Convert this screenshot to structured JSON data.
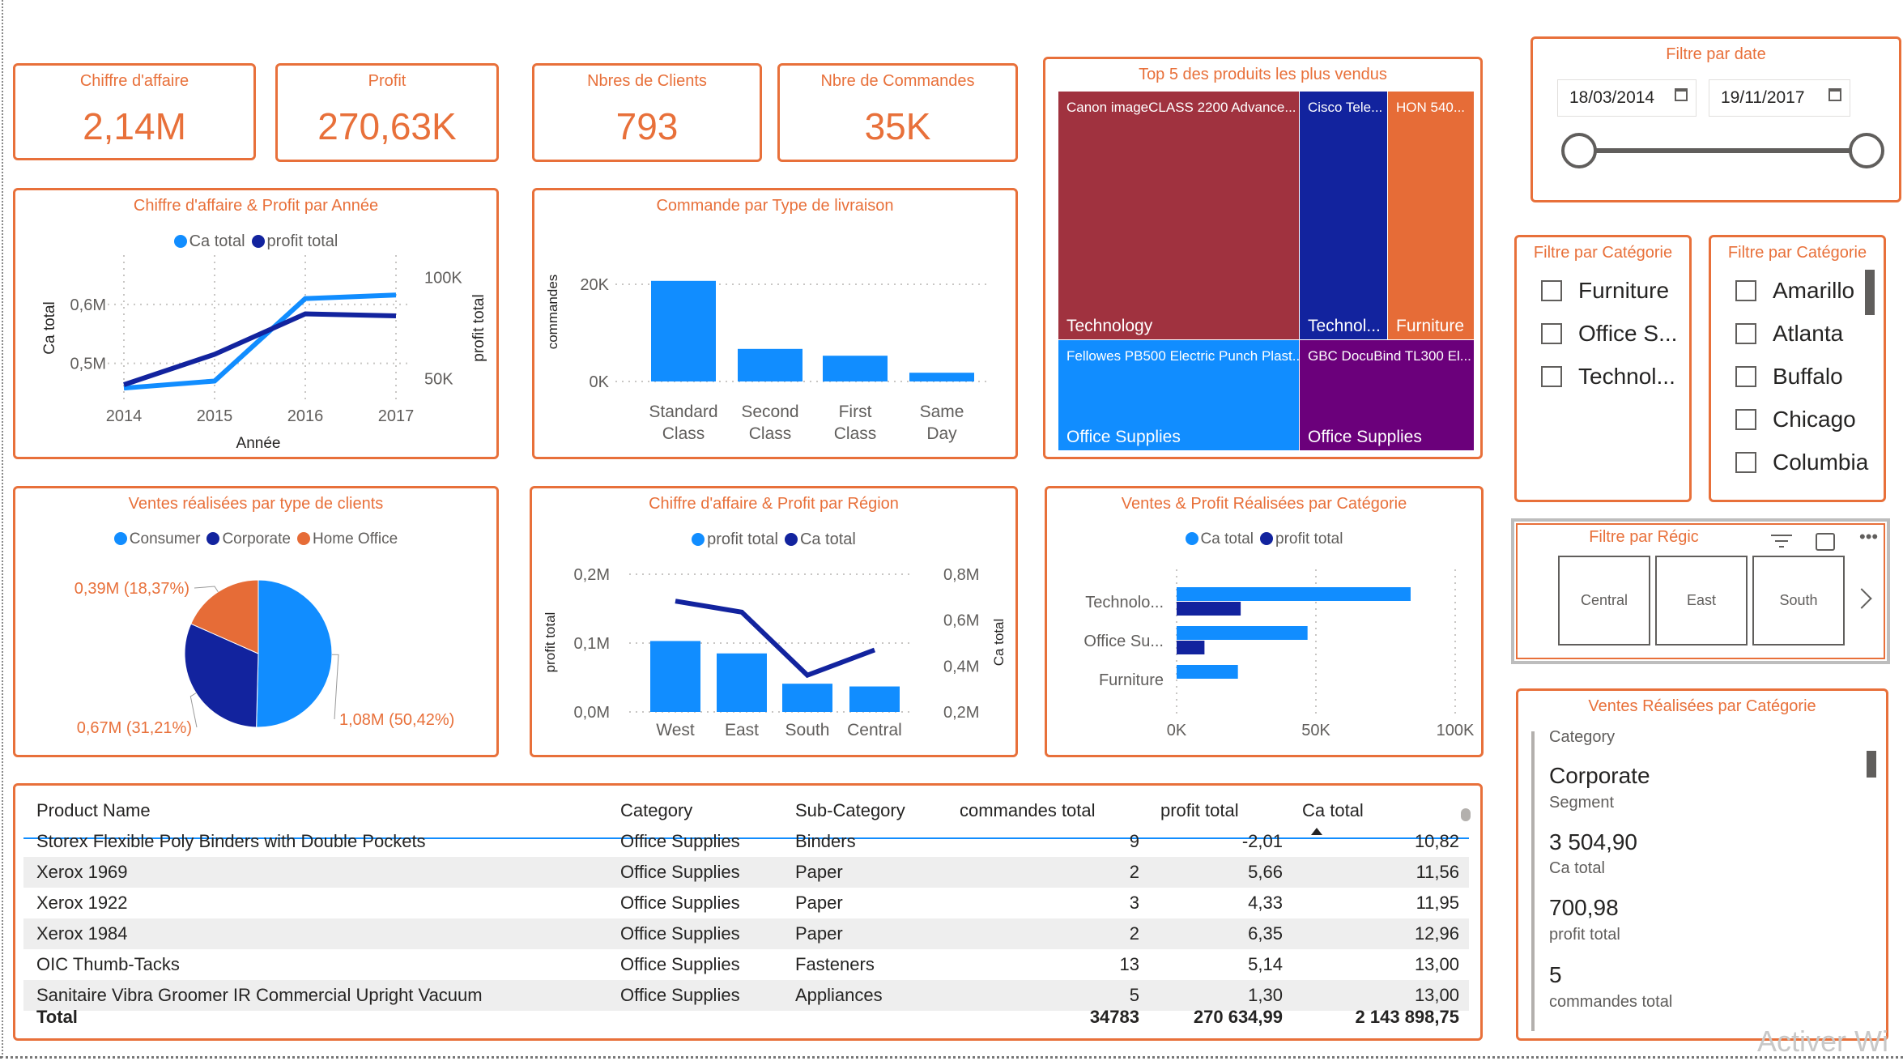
{
  "colors": {
    "accent": "#E8703A",
    "blue": "#118DFF",
    "dark_blue": "#12239E",
    "maroon": "#A0323F",
    "purple": "#6B007B"
  },
  "kpis": [
    {
      "title": "Chiffre d'affaire",
      "value": "2,14M"
    },
    {
      "title": "Profit",
      "value": "270,63K"
    },
    {
      "title": "Nbres de Clients",
      "value": "793"
    },
    {
      "title": "Nbre de Commandes",
      "value": "35K"
    }
  ],
  "treemap": {
    "title": "Top 5 des produits les plus vendus",
    "tiles": [
      {
        "product": "Canon imageCLASS 2200 Advance...",
        "category": "Technology",
        "color": "#A0323F"
      },
      {
        "product": "Cisco Tele...",
        "category": "Technol...",
        "color": "#12239E"
      },
      {
        "product": "HON 540...",
        "category": "Furniture",
        "color": "#E66C37"
      },
      {
        "product": "Fellowes PB500 Electric Punch Plast...",
        "category": "Office Supplies",
        "color": "#118DFF"
      },
      {
        "product": "GBC DocuBind TL300 El...",
        "category": "Office Supplies",
        "color": "#6B007B"
      }
    ]
  },
  "date_filter": {
    "title": "Filtre par date",
    "start": "18/03/2014",
    "end": "19/11/2017",
    "range_fraction": [
      0,
      1
    ]
  },
  "category_filter": {
    "title": "Filtre par Catégorie",
    "items": [
      "Furniture",
      "Office S...",
      "Technol..."
    ]
  },
  "city_filter": {
    "title": "Filtre par Catégorie",
    "items": [
      "Amarillo",
      "Atlanta",
      "Buffalo",
      "Chicago",
      "Columbia"
    ]
  },
  "region_filter": {
    "title": "Filtre par Régic",
    "tiles": [
      "Central",
      "East",
      "South"
    ]
  },
  "card": {
    "title": "Ventes Réalisées par Catégorie",
    "fields": [
      {
        "label": "Category",
        "value": ""
      },
      {
        "value": "Corporate",
        "label": "Segment"
      },
      {
        "value": "3 504,90",
        "label": "Ca total"
      },
      {
        "value": "700,98",
        "label": "profit total"
      },
      {
        "value": "5",
        "label": "commandes total"
      }
    ]
  },
  "chart_data": [
    {
      "type": "line",
      "title": "Chiffre d'affaire & Profit par Année",
      "legend": [
        "Ca total",
        "profit total"
      ],
      "x": [
        "2014",
        "2015",
        "2016",
        "2017"
      ],
      "xlabel": "Année",
      "ylabel": "Ca total",
      "y2label": "profit total",
      "ylim": [
        0.45,
        0.67
      ],
      "y2lim": [
        43,
        107
      ],
      "yticks": [
        {
          "v": 0.5,
          "label": "0,5M"
        },
        {
          "v": 0.6,
          "label": "0,6M"
        }
      ],
      "y2ticks": [
        {
          "v": 50,
          "label": "50K"
        },
        {
          "v": 100,
          "label": "100K"
        }
      ],
      "series": [
        {
          "name": "Ca total",
          "axis": "left",
          "color": "#118DFF",
          "values": [
            0.458,
            0.47,
            0.61,
            0.616
          ]
        },
        {
          "name": "profit total",
          "axis": "right",
          "color": "#12239E",
          "values": [
            47,
            62,
            82,
            81
          ]
        }
      ]
    },
    {
      "type": "bar",
      "title": "Commande par Type de livraison",
      "ylabel": "commandes",
      "categories": [
        [
          "Standard",
          "Class"
        ],
        [
          "Second",
          "Class"
        ],
        [
          "First",
          "Class"
        ],
        [
          "Same",
          "Day"
        ]
      ],
      "values": [
        20700,
        6700,
        5300,
        1800
      ],
      "ylim": [
        0,
        24000
      ],
      "yticks": [
        {
          "v": 0,
          "label": "0K"
        },
        {
          "v": 20000,
          "label": "20K"
        }
      ]
    },
    {
      "type": "pie",
      "title": "Ventes réalisées par type de clients",
      "legend": [
        "Consumer",
        "Corporate",
        "Home Office"
      ],
      "slices": [
        {
          "name": "Consumer",
          "value": 50.42,
          "label": "1,08M (50,42%)",
          "color": "#118DFF"
        },
        {
          "name": "Corporate",
          "value": 31.21,
          "label": "0,67M (31,21%)",
          "color": "#12239E"
        },
        {
          "name": "Home Office",
          "value": 18.37,
          "label": "0,39M (18,37%)",
          "color": "#E66C37"
        }
      ]
    },
    {
      "type": "bar",
      "title": "Chiffre d'affaire & Profit par Région",
      "legend": [
        "profit total",
        "Ca total"
      ],
      "categories": [
        "West",
        "East",
        "South",
        "Central"
      ],
      "ylabel": "profit total",
      "y2label": "Ca total",
      "ylim": [
        0,
        0.2
      ],
      "y2lim": [
        0.2,
        0.8
      ],
      "yticks": [
        {
          "v": 0,
          "label": "0,0M"
        },
        {
          "v": 0.1,
          "label": "0,1M"
        },
        {
          "v": 0.2,
          "label": "0,2M"
        }
      ],
      "y2ticks": [
        {
          "v": 0.2,
          "label": "0,2M"
        },
        {
          "v": 0.4,
          "label": "0,4M"
        },
        {
          "v": 0.6,
          "label": "0,6M"
        },
        {
          "v": 0.8,
          "label": "0,8M"
        }
      ],
      "series": [
        {
          "name": "profit total",
          "kind": "bar",
          "color": "#118DFF",
          "values": [
            0.103,
            0.085,
            0.041,
            0.037
          ]
        },
        {
          "name": "Ca total",
          "kind": "line",
          "color": "#12239E",
          "values": [
            0.683,
            0.635,
            0.36,
            0.47
          ]
        }
      ]
    },
    {
      "type": "bar",
      "title": "Ventes & Profit Réalisées par Catégorie",
      "orientation": "horizontal",
      "legend": [
        "Ca total",
        "profit total"
      ],
      "categories": [
        "Technolo...",
        "Office Su...",
        "Furniture"
      ],
      "xlim": [
        0,
        100000
      ],
      "xticks": [
        {
          "v": 0,
          "label": "0K"
        },
        {
          "v": 50000,
          "label": "50K"
        },
        {
          "v": 100000,
          "label": "100K"
        }
      ],
      "series": [
        {
          "name": "Ca total",
          "color": "#118DFF",
          "values": [
            84000,
            47000,
            22000
          ]
        },
        {
          "name": "profit total",
          "color": "#12239E",
          "values": [
            23000,
            10000,
            0
          ]
        }
      ]
    }
  ],
  "table": {
    "columns": [
      "Product Name",
      "Category",
      "Sub-Category",
      "commandes total",
      "profit total",
      "Ca total"
    ],
    "sort_column": "Ca total",
    "rows": [
      [
        "Storex Flexible Poly Binders with Double Pockets",
        "Office Supplies",
        "Binders",
        "9",
        "-2,01",
        "10,82"
      ],
      [
        "Xerox 1969",
        "Office Supplies",
        "Paper",
        "2",
        "5,66",
        "11,56"
      ],
      [
        "Xerox 1922",
        "Office Supplies",
        "Paper",
        "3",
        "4,33",
        "11,95"
      ],
      [
        "Xerox 1984",
        "Office Supplies",
        "Paper",
        "2",
        "6,35",
        "12,96"
      ],
      [
        "OIC Thumb-Tacks",
        "Office Supplies",
        "Fasteners",
        "13",
        "5,14",
        "13,00"
      ],
      [
        "Sanitaire Vibra Groomer IR Commercial Upright Vacuum",
        "Office Supplies",
        "Appliances",
        "5",
        "1,30",
        "13,00"
      ]
    ],
    "total": {
      "label": "Total",
      "commandes": "34783",
      "profit": "270 634,99",
      "ca": "2 143 898,75"
    }
  },
  "watermark": "Activer Wi"
}
